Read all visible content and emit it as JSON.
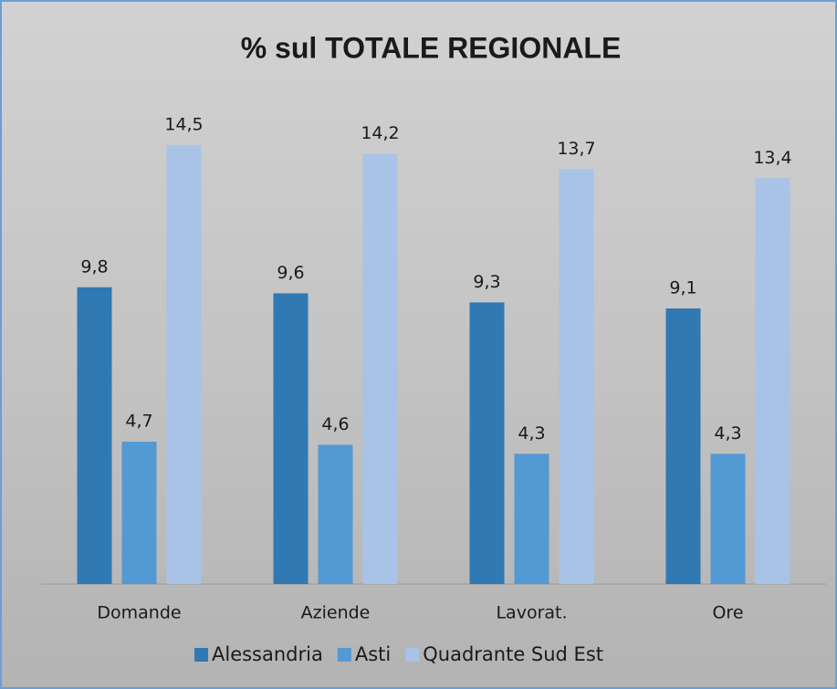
{
  "chart_data": {
    "type": "bar",
    "title": "% sul TOTALE REGIONALE",
    "categories": [
      "Domande",
      "Aziende",
      "Lavorat.",
      "Ore"
    ],
    "series": [
      {
        "name": "Alessandria",
        "color": "#3079b3",
        "values": [
          9.8,
          9.6,
          9.3,
          9.1
        ],
        "value_labels": [
          "9,8",
          "9,6",
          "9,3",
          "9,1"
        ]
      },
      {
        "name": "Asti",
        "color": "#5399d4",
        "values": [
          4.7,
          4.6,
          4.3,
          4.3
        ],
        "value_labels": [
          "4,7",
          "4,6",
          "4,3",
          "4,3"
        ]
      },
      {
        "name": "Quadrante Sud Est",
        "color": "#a8c3e5",
        "values": [
          14.5,
          14.2,
          13.7,
          13.4
        ],
        "value_labels": [
          "14,5",
          "14,2",
          "13,7",
          "13,4"
        ]
      }
    ],
    "ylim": [
      0,
      16
    ]
  }
}
